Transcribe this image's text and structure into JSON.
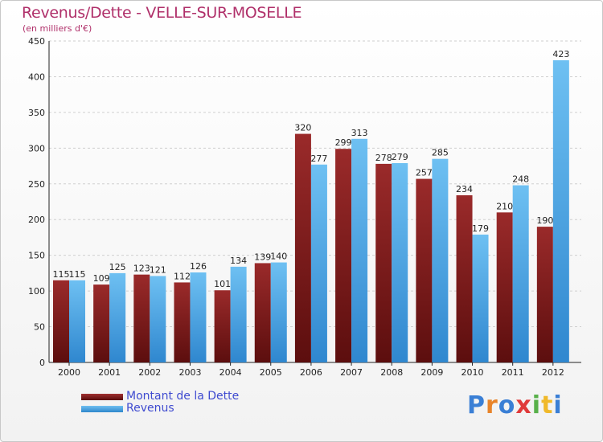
{
  "header": {
    "title": "Revenus/Dette - VELLE-SUR-MOSELLE",
    "unit_note": "(en milliers d'€)"
  },
  "chart_data": {
    "type": "bar",
    "categories": [
      "2000",
      "2001",
      "2002",
      "2003",
      "2004",
      "2005",
      "2006",
      "2007",
      "2008",
      "2009",
      "2010",
      "2011",
      "2012"
    ],
    "series": [
      {
        "name": "Montant de la Dette",
        "color": "#7a1a1a",
        "values": [
          115,
          109,
          123,
          112,
          101,
          139,
          320,
          299,
          278,
          257,
          234,
          210,
          190
        ]
      },
      {
        "name": "Revenus",
        "color": "#4aa3e0",
        "values": [
          115,
          125,
          121,
          126,
          134,
          140,
          277,
          313,
          279,
          285,
          179,
          248,
          423
        ]
      }
    ],
    "ylim": [
      0,
      450
    ],
    "yticks": [
      0,
      50,
      100,
      150,
      200,
      250,
      300,
      350,
      400,
      450
    ],
    "grid": true,
    "legend_position": "bottom-left"
  },
  "legend": {
    "debt_label": "Montant de la Dette",
    "revenue_label": "Revenus"
  },
  "logo": {
    "text": "Proxiti",
    "letters": [
      "P",
      "r",
      "o",
      "x",
      "i",
      "t",
      "i"
    ],
    "colors": [
      "#3a7fd5",
      "#e8842a",
      "#3a7fd5",
      "#e03a3a",
      "#58b04a",
      "#f0b92a",
      "#3a7fd5"
    ]
  }
}
